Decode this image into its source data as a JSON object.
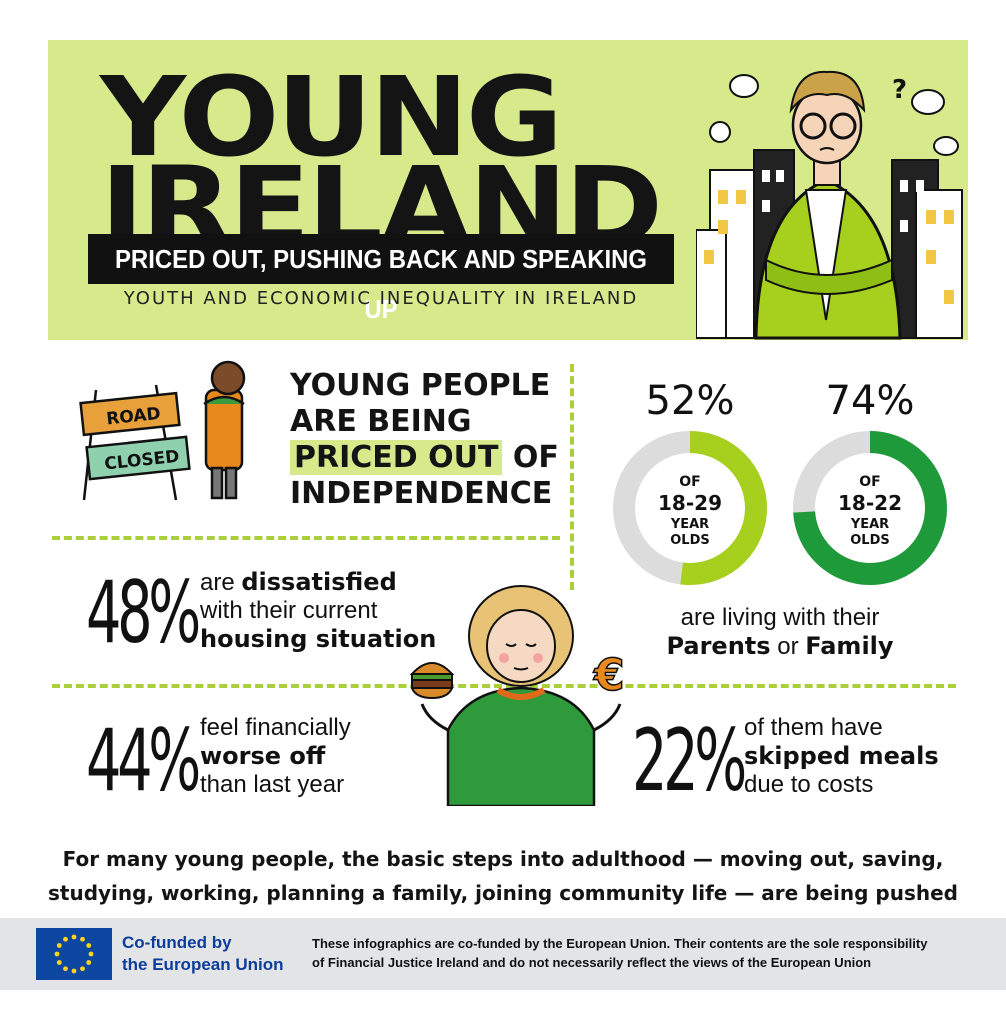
{
  "header": {
    "title_line1": "YOUNG",
    "title_line2": "IRELAND",
    "subtitle": "PRICED OUT, PUSHING BACK AND SPEAKING UP",
    "tagline": "YOUTH AND ECONOMIC INEQUALITY IN IRELAND"
  },
  "priced_out": {
    "sign_road": "ROAD",
    "sign_closed": "CLOSED",
    "line1": "YOUNG PEOPLE",
    "line2": "ARE BEING",
    "highlight": "PRICED OUT",
    "line3_rest": "OF",
    "line4": "INDEPENDENCE"
  },
  "living_with_parents": {
    "donuts": [
      {
        "value_label": "52%",
        "fraction": 0.52,
        "of": "OF",
        "group": "18-29",
        "unit1": "YEAR",
        "unit2": "OLDS",
        "color": "#a6cf1e"
      },
      {
        "value_label": "74%",
        "fraction": 0.74,
        "of": "OF",
        "group": "18-22",
        "unit1": "YEAR",
        "unit2": "OLDS",
        "color": "#1f9a3b"
      }
    ],
    "caption_line1": "are living with their",
    "caption_bold1": "Parents",
    "caption_mid": "or",
    "caption_bold2": "Family"
  },
  "stats": {
    "dissatisfied": {
      "pct": "48%",
      "pre": "are",
      "bold1": "dissatisfied",
      "line2": "with their current",
      "bold2": "housing situation"
    },
    "worse_off": {
      "pct": "44%",
      "line1": "feel financially",
      "bold": "worse off",
      "line3": "than last year"
    },
    "skipped": {
      "pct": "22%",
      "line1": "of them have",
      "bold": "skipped meals",
      "line3": "due to costs"
    }
  },
  "closing": "For many young people, the basic steps into adulthood — moving out, saving, studying, working, planning a family, joining community life — are being pushed further out of reach.",
  "footer": {
    "cofund_line1": "Co-funded by",
    "cofund_line2": "the European Union",
    "disclaimer_line1": "These infographics are co-funded by the European Union. Their contents are the sole responsibility",
    "disclaimer_line2": "of Financial Justice Ireland and do not necessarily reflect the views of the European Union"
  },
  "colors": {
    "lime": "#d6ea8c",
    "green_light": "#a6cf1e",
    "green_dark": "#1f9a3b",
    "eu_blue": "#0e47a1",
    "eu_text": "#0d3d9b"
  }
}
